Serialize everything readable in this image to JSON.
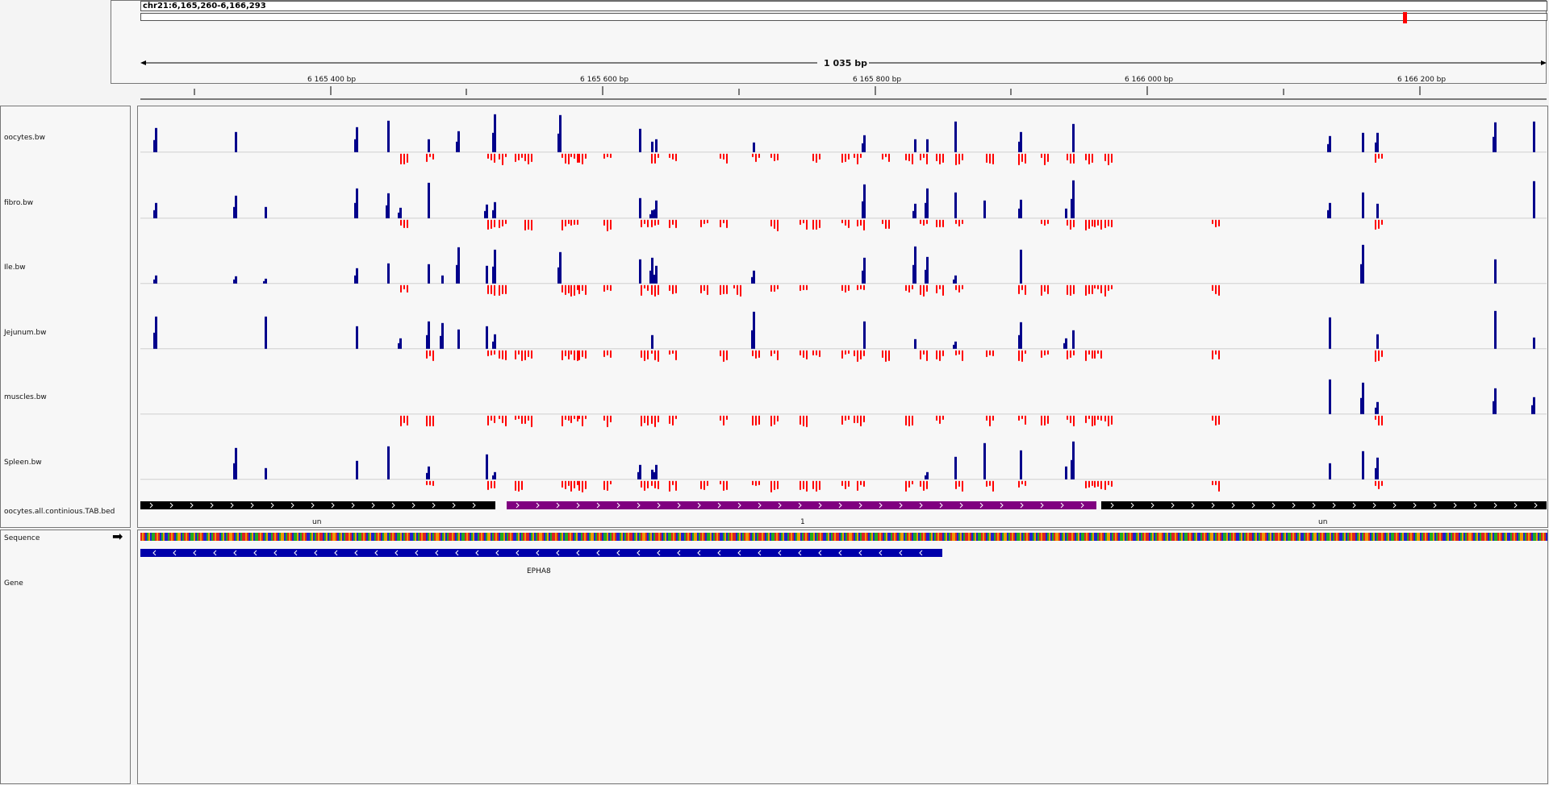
{
  "header": {
    "locus": "chr21:6,165,260-6,166,293",
    "span_label": "1 035 bp",
    "ticks": [
      "6 165 400 bp",
      "6 165 600 bp",
      "6 165 800 bp",
      "6 166 000 bp",
      "6 166 200 bp"
    ]
  },
  "tracks": [
    {
      "name": "oocytes.bw"
    },
    {
      "name": "fibro.bw"
    },
    {
      "name": "Ile.bw"
    },
    {
      "name": "Jejunum.bw"
    },
    {
      "name": "muscles.bw"
    },
    {
      "name": "Spleen.bw"
    },
    {
      "name": "oocytes.all.continious.TAB.bed"
    }
  ],
  "bed": {
    "segments": [
      {
        "label": "un",
        "color": "#000000"
      },
      {
        "label": "1",
        "color": "#800080"
      },
      {
        "label": "un",
        "color": "#000000"
      }
    ]
  },
  "lower": {
    "sequence_label": "Sequence",
    "gene_label": "Gene",
    "gene_name": "EPHA8"
  },
  "colors": {
    "positive": "#00008b",
    "negative": "#ff0000",
    "gene": "#0000aa",
    "bed_purple": "#800080",
    "bed_black": "#000000"
  }
}
